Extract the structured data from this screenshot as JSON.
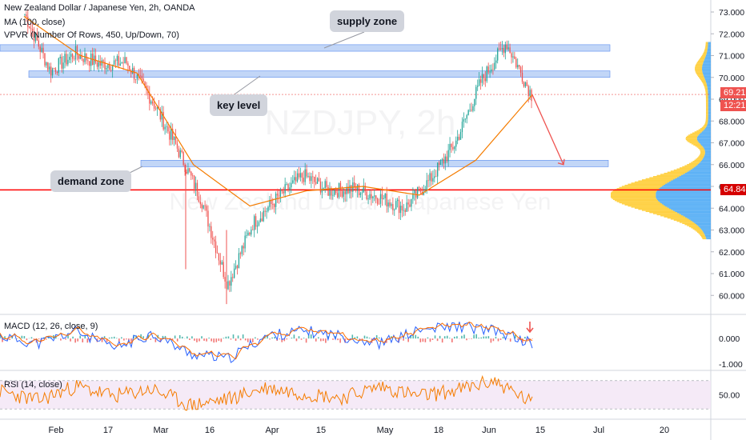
{
  "header": {
    "symbol_line": "New Zealand Dollar / Japanese Yen, 2h, OANDA",
    "ma_line": "MA (100, close)",
    "vpvr_line": "VPVR (Number Of Rows, 450, Up/Down, 70)",
    "watermark_main": "NZDJPY, 2h",
    "watermark_sub": "New Zealand Dollar / Japanese Yen"
  },
  "annotations": {
    "supply_zone": "supply zone",
    "key_level": "key level",
    "demand_zone": "demand zone"
  },
  "price_scale": {
    "ticks": [
      "73.000",
      "72.000",
      "71.000",
      "70.000",
      "69.000",
      "68.000",
      "67.000",
      "66.000",
      "65.000",
      "64.000",
      "63.000",
      "62.000",
      "61.000",
      "60.000"
    ],
    "current_price": "69.217",
    "countdown": "12:21",
    "support_price": "64.840"
  },
  "macd": {
    "label": "MACD (12, 26, close, 9)",
    "ticks": [
      "0.000",
      "-1.000"
    ]
  },
  "rsi": {
    "label": "RSI (14, close)",
    "ticks": [
      "50.00"
    ]
  },
  "time_axis": [
    "Feb",
    "17",
    "Mar",
    "16",
    "Apr",
    "15",
    "May",
    "18",
    "Jun",
    "15",
    "Jul",
    "20"
  ],
  "colors": {
    "up": "#26a69a",
    "down": "#ef5350",
    "ma": "#f57c00",
    "zone": "#90b4f0",
    "support_line": "#ff0000",
    "price_line": "#ef5350",
    "vp_up": "#42a5f5",
    "vp_down": "#ffc107",
    "rsi_line": "#f57c00",
    "rsi_band": "#f3e5f5"
  },
  "chart_data": [
    {
      "type": "candlestick",
      "title": "New Zealand Dollar / Japanese Yen, 2h, OANDA",
      "ylim": [
        59.5,
        73.2
      ],
      "x_axis": [
        "Feb",
        "17",
        "Mar",
        "16",
        "Apr",
        "15",
        "May",
        "18",
        "Jun",
        "15",
        "Jul",
        "20"
      ],
      "series": [
        {
          "name": "price_path",
          "x": [
            "Jan 22",
            "Feb 1",
            "Feb 10",
            "Feb 17",
            "Feb 24",
            "Mar 2",
            "Mar 9",
            "Mar 16",
            "Mar 19",
            "Mar 23",
            "Apr 1",
            "Apr 10",
            "Apr 20",
            "May 1",
            "May 10",
            "May 18",
            "May 25",
            "Jun 1",
            "Jun 5",
            "Jun 8",
            "Jun 12"
          ],
          "values": [
            72.9,
            70.3,
            71.1,
            70.6,
            70.7,
            69.0,
            66.8,
            64.3,
            60.5,
            63.3,
            64.5,
            65.5,
            64.8,
            64.9,
            64.5,
            64.0,
            65.3,
            67.0,
            69.8,
            71.6,
            69.2
          ]
        },
        {
          "name": "MA (100, close)",
          "x": [
            "Jan 22",
            "Feb 10",
            "Mar 1",
            "Mar 16",
            "Apr 1",
            "Apr 15",
            "May 1",
            "May 18",
            "Jun 1",
            "Jun 12"
          ],
          "values": [
            72.8,
            71.0,
            70.2,
            66.0,
            64.1,
            64.8,
            65.0,
            64.6,
            66.2,
            69.2
          ]
        }
      ],
      "zones": [
        {
          "name": "supply zone",
          "range": [
            71.2,
            71.5
          ]
        },
        {
          "name": "key level",
          "range": [
            70.0,
            70.3
          ]
        },
        {
          "name": "demand zone",
          "range": [
            65.9,
            66.2
          ]
        }
      ],
      "support_level": 64.84,
      "current_price": 69.217,
      "projection": {
        "from": 69.2,
        "to": 66.0
      }
    },
    {
      "type": "line",
      "title": "MACD (12, 26, close, 9)",
      "ylim": [
        -1.1,
        0.7
      ],
      "series": [
        {
          "name": "MACD",
          "values": [
            0.1,
            -0.2,
            0.3,
            -0.4,
            0.2,
            -0.6,
            -0.8,
            0.1,
            0.3,
            0.1,
            -0.2,
            0.3,
            0.5,
            0.3,
            -0.2
          ]
        }
      ]
    },
    {
      "type": "line",
      "title": "RSI (14, close)",
      "ylim": [
        20,
        80
      ],
      "band": [
        30,
        70
      ],
      "series": [
        {
          "name": "RSI",
          "values": [
            55,
            42,
            62,
            48,
            58,
            35,
            44,
            60,
            52,
            46,
            62,
            48,
            56,
            70,
            38
          ]
        }
      ]
    }
  ]
}
